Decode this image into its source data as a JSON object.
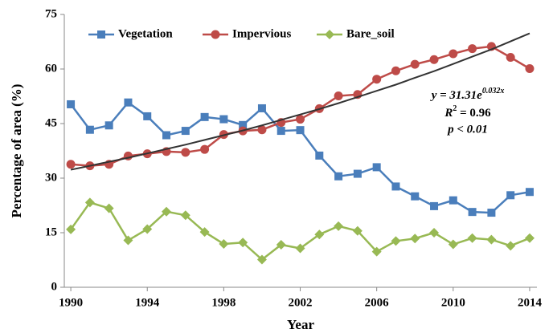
{
  "chart_data": {
    "type": "line",
    "x_label": "Year",
    "y_label": "Percentage of area (%)",
    "x": [
      1990,
      1991,
      1992,
      1993,
      1994,
      1995,
      1996,
      1997,
      1998,
      1999,
      2000,
      2001,
      2002,
      2003,
      2004,
      2005,
      2006,
      2007,
      2008,
      2009,
      2010,
      2011,
      2012,
      2013,
      2014
    ],
    "series": [
      {
        "name": "Vegetation",
        "color": "#4a7ebb",
        "marker": "square",
        "values": [
          50.3,
          43.3,
          44.5,
          50.8,
          47,
          41.8,
          43,
          46.8,
          46.2,
          44.6,
          49.2,
          43,
          43.2,
          36.2,
          30.5,
          31.2,
          33,
          27.7,
          25,
          22.3,
          23.9,
          20.7,
          20.5,
          25.3,
          26.2
        ]
      },
      {
        "name": "Impervious",
        "color": "#be4b48",
        "marker": "circle",
        "values": [
          33.8,
          33.4,
          33.8,
          36.1,
          36.7,
          37.3,
          37.1,
          37.9,
          42,
          43,
          43.3,
          45.3,
          46.2,
          49.1,
          52.6,
          53,
          57.2,
          59.5,
          61.3,
          62.6,
          64.2,
          65.6,
          66.2,
          63.2,
          60.1
        ]
      },
      {
        "name": "Bare_soil",
        "color": "#98b954",
        "marker": "diamond",
        "values": [
          15.9,
          23.3,
          21.7,
          12.9,
          16,
          20.8,
          19.8,
          15.2,
          11.9,
          12.3,
          7.6,
          11.7,
          10.7,
          14.5,
          16.8,
          15.5,
          9.8,
          12.7,
          13.4,
          15,
          11.8,
          13.5,
          13.1,
          11.4,
          13.5
        ]
      }
    ],
    "trendline": {
      "color": "#333333",
      "values": [
        32.3,
        33.4,
        34.5,
        35.6,
        36.8,
        38.0,
        39.2,
        40.5,
        41.8,
        43.1,
        44.5,
        46.0,
        47.5,
        49.0,
        50.6,
        52.3,
        54.0,
        55.7,
        57.6,
        59.4,
        61.4,
        63.4,
        65.4,
        67.6,
        69.8
      ]
    },
    "annotations": {
      "equation": "y = 31.31e",
      "exponent": "0.032x",
      "r_symbol": "R",
      "r_power": "2",
      "r_value": " = 0.96",
      "p_value": "p < 0.01"
    },
    "xlim": [
      1989.66,
      2014.38
    ],
    "xticks": [
      1990,
      1994,
      1998,
      2002,
      2006,
      2010,
      2014
    ],
    "ylim": [
      0,
      75
    ],
    "yticks": [
      0,
      15,
      30,
      45,
      60,
      75
    ],
    "legend": "top-left"
  }
}
